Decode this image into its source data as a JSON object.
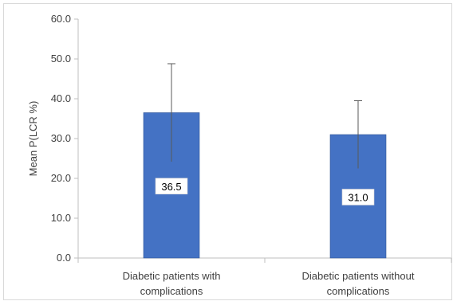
{
  "chart_data": {
    "type": "bar",
    "title": "",
    "xlabel": "",
    "ylabel": "Mean P(LCR %)",
    "ylim": [
      0,
      60
    ],
    "yticks": [
      "0.0",
      "10.0",
      "20.0",
      "30.0",
      "40.0",
      "50.0",
      "60.0"
    ],
    "categories": [
      [
        "Diabetic patients with",
        "complications"
      ],
      [
        "Diabetic patients without",
        "complications"
      ]
    ],
    "values": [
      36.5,
      31.0
    ],
    "value_labels": [
      "36.5",
      "31.0"
    ],
    "error_upper": [
      12.3,
      8.5
    ],
    "grid": false,
    "legend": "none",
    "colors": {
      "bar": "#4472c4",
      "bar_edge": "#2f5597",
      "error_bar": "#595959",
      "axis": "#bfbfbf",
      "text": "#404040"
    }
  }
}
